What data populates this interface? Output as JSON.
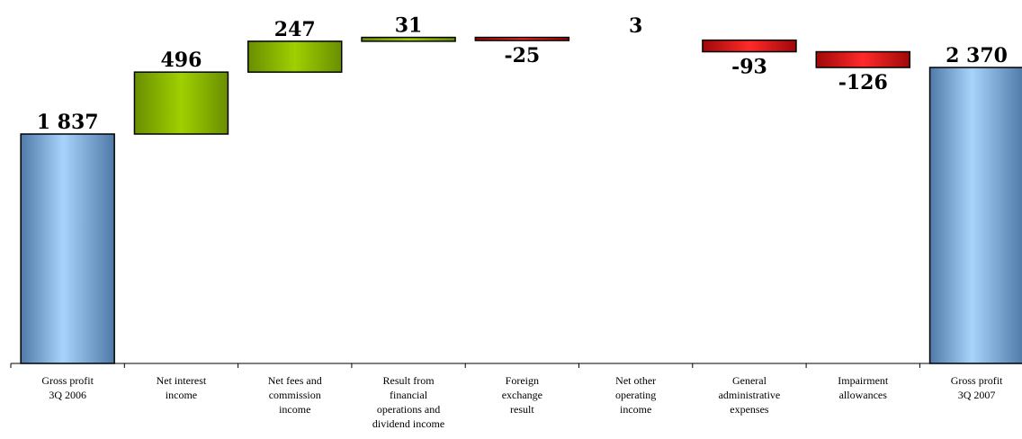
{
  "chart_data": {
    "type": "bar",
    "subtype": "waterfall",
    "title": "",
    "xlabel": "",
    "ylabel": "",
    "ylim": [
      0,
      2650
    ],
    "grid": false,
    "legend": "none",
    "categories": [
      [
        "Gross profit",
        "3Q 2006"
      ],
      [
        "Net interest",
        "income"
      ],
      [
        "Net fees and",
        "commission",
        "income"
      ],
      [
        "Result from",
        "financial",
        "operations and",
        "dividend income"
      ],
      [
        "Foreign",
        "exchange",
        "result"
      ],
      [
        "Net other",
        "operating",
        "income"
      ],
      [
        "General",
        "administrative",
        "expenses"
      ],
      [
        "Impairment",
        "allowances"
      ],
      [
        "Gross profit",
        "3Q 2007"
      ]
    ],
    "values": [
      1837,
      496,
      247,
      31,
      -25,
      3,
      -93,
      -126,
      2370
    ],
    "bar_kinds": [
      "total",
      "delta",
      "delta",
      "delta",
      "delta",
      "delta",
      "delta",
      "delta",
      "total"
    ],
    "value_labels": [
      "1 837",
      "496",
      "247",
      "31",
      "-25",
      "3",
      "-93",
      "-126",
      "2 370"
    ],
    "colors": {
      "total": "#5f8fc4",
      "total_light": "#9cc9f2",
      "positive": "#8ab800",
      "positive_dark": "#6a8e00",
      "negative": "#e01010",
      "negative_dark": "#a00808"
    }
  }
}
